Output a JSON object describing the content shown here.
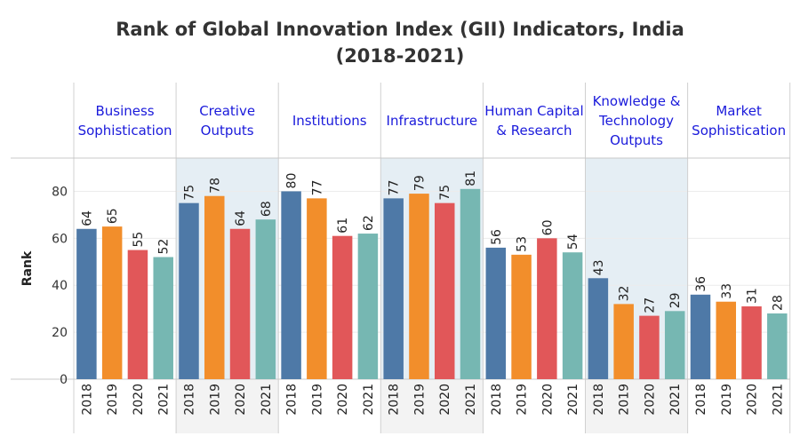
{
  "chart_data": {
    "type": "bar",
    "title": "Rank of Global Innovation Index (GII) Indicators, India",
    "subtitle": "(2018-2021)",
    "ylabel": "Rank",
    "xlabel": "",
    "ylim": [
      0,
      90
    ],
    "yticks": [
      0,
      20,
      40,
      60,
      80
    ],
    "grid": true,
    "legend": "none",
    "categories": [
      "2018",
      "2019",
      "2020",
      "2021"
    ],
    "colors": [
      "#4e79a7",
      "#f28e2b",
      "#e15759",
      "#76b7b2"
    ],
    "panel_shading": "#e5eef4",
    "panels": [
      {
        "name": "Business Sophistication",
        "label_lines": [
          "Business",
          "Sophistication"
        ],
        "values": [
          64,
          65,
          55,
          52
        ],
        "shaded": false
      },
      {
        "name": "Creative Outputs",
        "label_lines": [
          "Creative",
          "Outputs"
        ],
        "values": [
          75,
          78,
          64,
          68
        ],
        "shaded": true
      },
      {
        "name": "Institutions",
        "label_lines": [
          "Institutions"
        ],
        "values": [
          80,
          77,
          61,
          62
        ],
        "shaded": false
      },
      {
        "name": "Infrastructure",
        "label_lines": [
          "Infrastructure"
        ],
        "values": [
          77,
          79,
          75,
          81
        ],
        "shaded": true
      },
      {
        "name": "Human Capital & Research",
        "label_lines": [
          "Human Capital",
          "& Research"
        ],
        "values": [
          56,
          53,
          60,
          54
        ],
        "shaded": false
      },
      {
        "name": "Knowledge & Technology Outputs",
        "label_lines": [
          "Knowledge &",
          "Technology",
          "Outputs"
        ],
        "values": [
          43,
          32,
          27,
          29
        ],
        "shaded": true
      },
      {
        "name": "Market Sophistication",
        "label_lines": [
          "Market",
          "Sophistication"
        ],
        "values": [
          36,
          33,
          31,
          28
        ],
        "shaded": false
      }
    ]
  }
}
